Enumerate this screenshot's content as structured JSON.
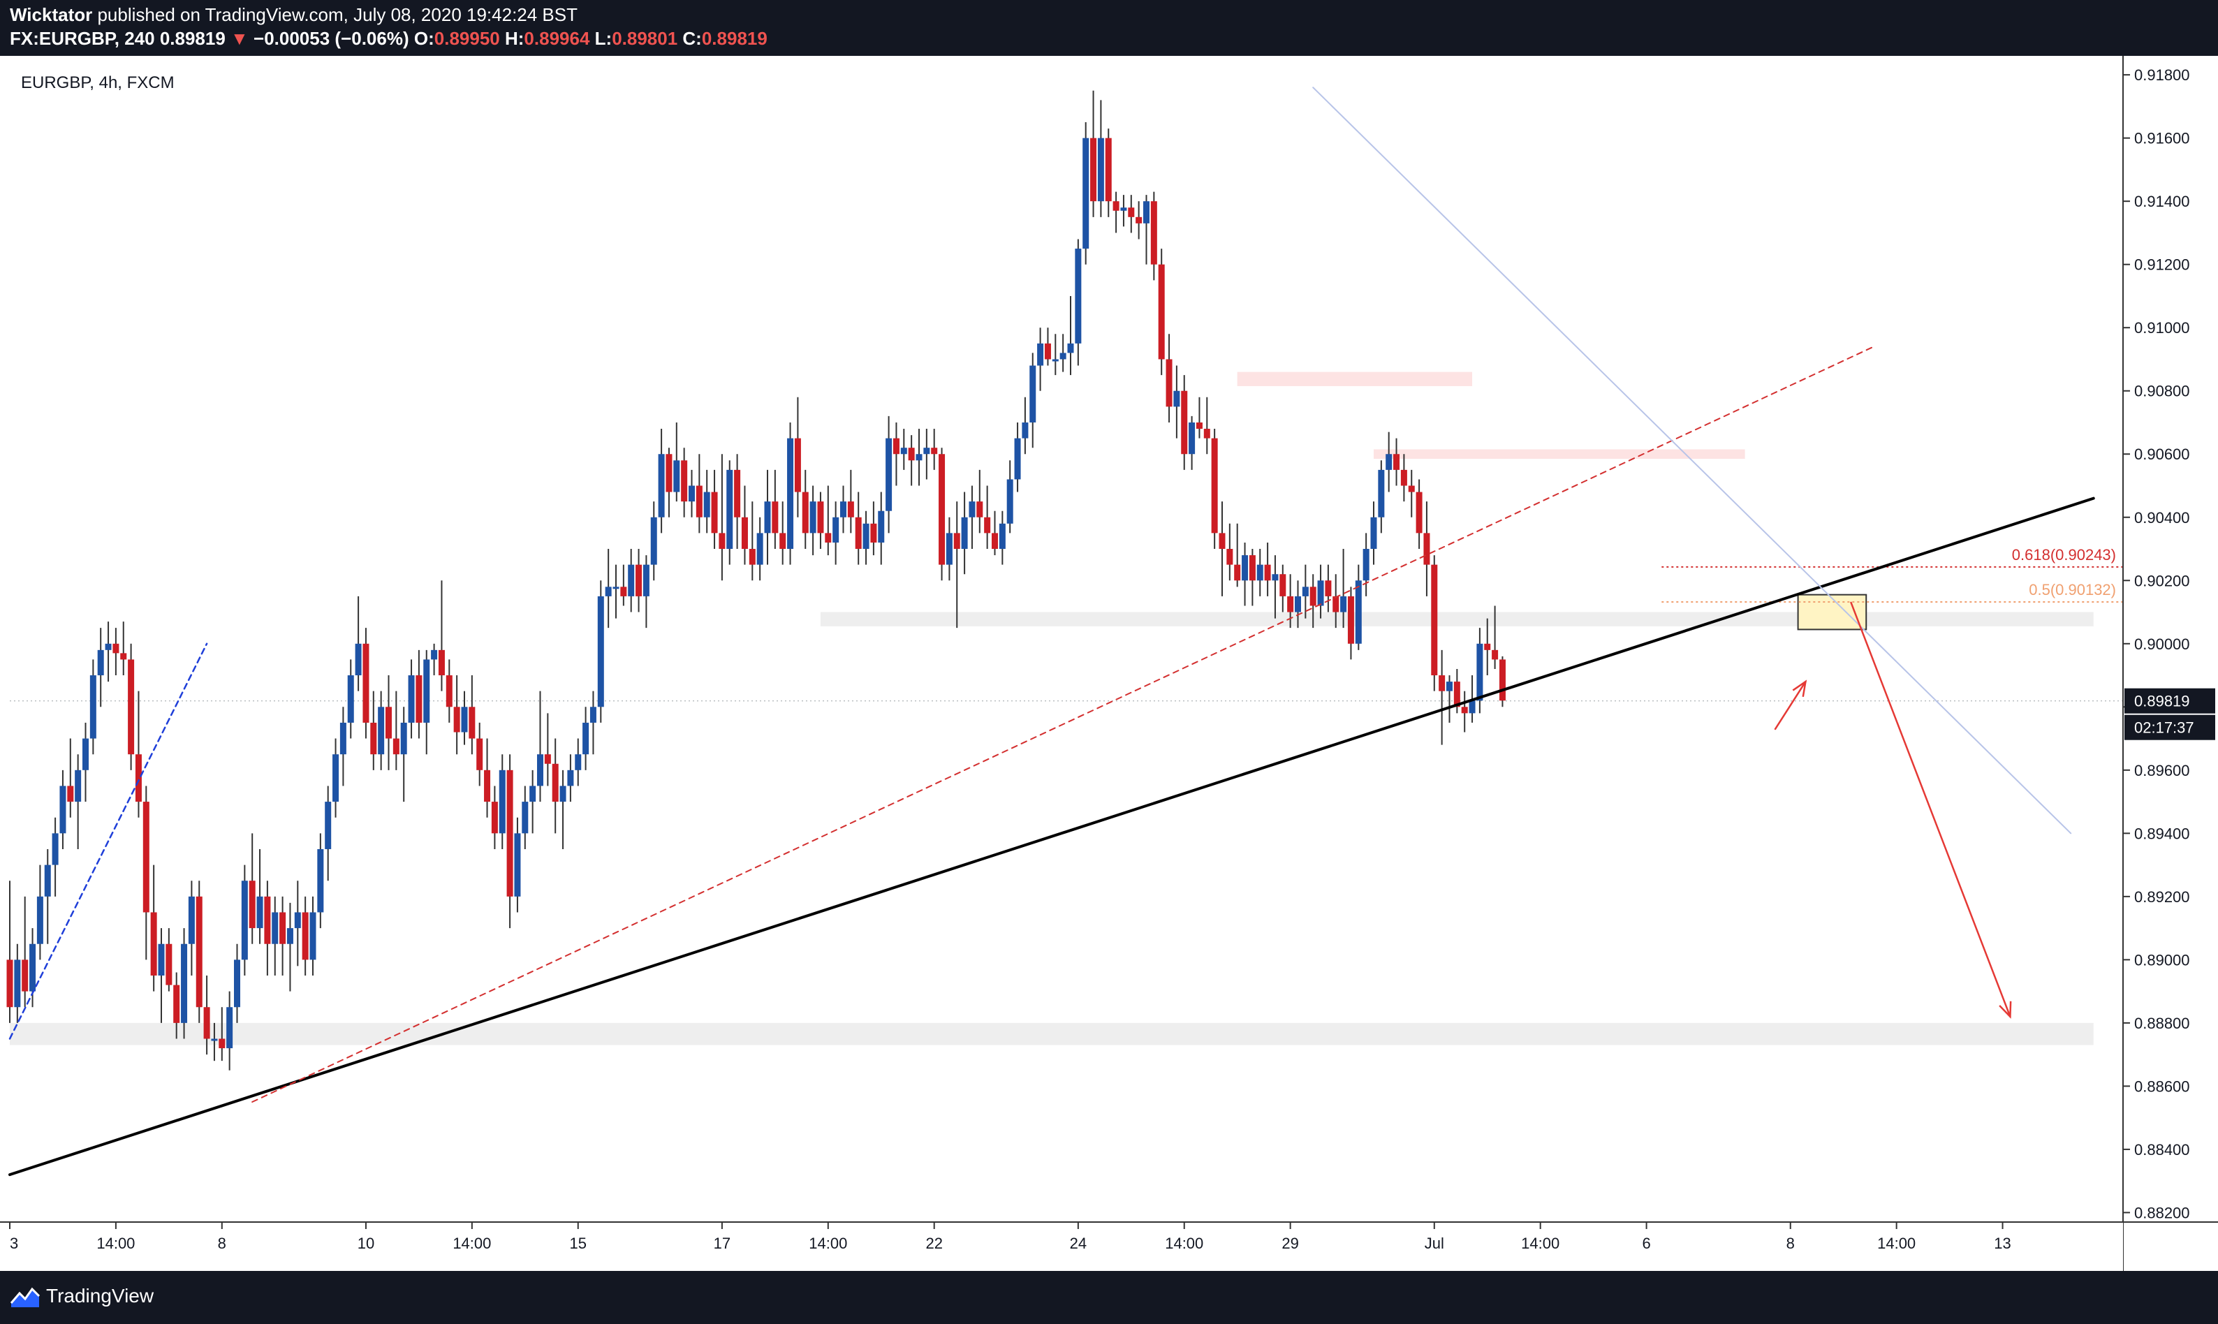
{
  "header": {
    "author": "Wicktator",
    "published": "published on TradingView.com, July 08, 2020 19:42:24 BST",
    "symbol": "FX:EURGBP, 240",
    "last": "0.89819",
    "arrow": "▼",
    "change": "−0.00053 (−0.06%)",
    "o_label": "O:",
    "o_value": "0.89950",
    "h_label": "H:",
    "h_value": "0.89964",
    "l_label": "L:",
    "l_value": "0.89801",
    "c_label": "C:",
    "c_value": "0.89819"
  },
  "footer": {
    "brand": "TradingView",
    "icon": "tradingview-logo-icon"
  },
  "colors": {
    "up": "#1e53a5",
    "down": "#cc1d24",
    "background": "#ffffff",
    "dark": "#131722"
  },
  "chart_data": {
    "type": "candlestick",
    "title": "EURGBP, 4h, FXCM",
    "ylim": [
      0.8817,
      0.9186
    ],
    "y_ticks": [
      "0.88200",
      "0.88400",
      "0.88600",
      "0.88800",
      "0.89000",
      "0.89200",
      "0.89400",
      "0.89600",
      "0.89800",
      "0.90000",
      "0.90200",
      "0.90400",
      "0.90600",
      "0.90800",
      "0.91000",
      "0.91200",
      "0.91400",
      "0.91600",
      "0.91800"
    ],
    "x_range": [
      0,
      270
    ],
    "x_ticks": [
      {
        "x": 0,
        "label": "3"
      },
      {
        "x": 14,
        "label": "14:00"
      },
      {
        "x": 28,
        "label": "8"
      },
      {
        "x": 47,
        "label": "10"
      },
      {
        "x": 61,
        "label": "14:00"
      },
      {
        "x": 75,
        "label": "15"
      },
      {
        "x": 94,
        "label": "17"
      },
      {
        "x": 108,
        "label": "14:00"
      },
      {
        "x": 122,
        "label": "22"
      },
      {
        "x": 141,
        "label": "24"
      },
      {
        "x": 155,
        "label": "14:00"
      },
      {
        "x": 169,
        "label": "29"
      },
      {
        "x": 188,
        "label": "Jul"
      },
      {
        "x": 202,
        "label": "14:00"
      },
      {
        "x": 216,
        "label": "6"
      },
      {
        "x": 235,
        "label": "8"
      },
      {
        "x": 249,
        "label": "14:00"
      },
      {
        "x": 263,
        "label": "13"
      }
    ],
    "last_price": {
      "value": 0.89819,
      "label": "0.89819",
      "countdown": "02:17:37"
    },
    "fib_levels": [
      {
        "label": "0.618(0.90243)",
        "value": 0.90243,
        "x_start": 218
      },
      {
        "label": "0.5(0.90132)",
        "value": 0.90132,
        "x_start": 218
      }
    ],
    "zones": [
      {
        "x0": 0,
        "x1": 275,
        "y0": 0.8873,
        "y1": 0.888
      },
      {
        "x0": 107,
        "x1": 275,
        "y0": 0.90055,
        "y1": 0.901
      },
      {
        "x0": 162,
        "x1": 193,
        "y0": 0.90815,
        "y1": 0.9086
      },
      {
        "x0": 180,
        "x1": 229,
        "y0": 0.90585,
        "y1": 0.90615
      },
      {
        "x0": 236,
        "x1": 245,
        "y0": 0.90045,
        "y1": 0.90155
      }
    ],
    "trendlines": [
      {
        "style": "solid-thick",
        "x0": 0,
        "y0": 0.8832,
        "x1": 275,
        "y1": 0.9046
      },
      {
        "style": "dashed-red",
        "x0": 32,
        "y0": 0.8855,
        "x1": 246,
        "y1": 0.9094
      },
      {
        "style": "dashed-blue",
        "x0": 0,
        "y0": 0.8875,
        "x1": 26,
        "y1": 0.9
      },
      {
        "style": "thin-blue",
        "x0": 172,
        "y0": 0.9176,
        "x1": 272,
        "y1": 0.894
      },
      {
        "style": "red-arrow",
        "x0": 243,
        "y0": 0.9013,
        "x1": 264,
        "y1": 0.8882
      },
      {
        "style": "red-small",
        "x0": 233,
        "y0": 0.8973,
        "x1": 237,
        "y1": 0.8988
      }
    ],
    "candles": [
      [
        0.89,
        0.8925,
        0.888,
        0.8885
      ],
      [
        0.8885,
        0.8905,
        0.888,
        0.89
      ],
      [
        0.89,
        0.892,
        0.8885,
        0.889
      ],
      [
        0.889,
        0.891,
        0.8885,
        0.8905
      ],
      [
        0.8905,
        0.893,
        0.89,
        0.892
      ],
      [
        0.892,
        0.8935,
        0.8905,
        0.893
      ],
      [
        0.893,
        0.8945,
        0.892,
        0.894
      ],
      [
        0.894,
        0.896,
        0.8935,
        0.8955
      ],
      [
        0.8955,
        0.897,
        0.8945,
        0.895
      ],
      [
        0.895,
        0.8965,
        0.8935,
        0.896
      ],
      [
        0.896,
        0.8975,
        0.895,
        0.897
      ],
      [
        0.897,
        0.8995,
        0.8965,
        0.899
      ],
      [
        0.899,
        0.9005,
        0.898,
        0.8998
      ],
      [
        0.8998,
        0.9007,
        0.8988,
        0.9
      ],
      [
        0.9,
        0.9005,
        0.899,
        0.8997
      ],
      [
        0.8997,
        0.9007,
        0.899,
        0.8995
      ],
      [
        0.8995,
        0.9,
        0.896,
        0.8965
      ],
      [
        0.8965,
        0.8985,
        0.8945,
        0.895
      ],
      [
        0.895,
        0.8955,
        0.89,
        0.8915
      ],
      [
        0.8915,
        0.893,
        0.889,
        0.8895
      ],
      [
        0.8895,
        0.891,
        0.888,
        0.8905
      ],
      [
        0.8905,
        0.891,
        0.889,
        0.8892
      ],
      [
        0.8892,
        0.8896,
        0.8875,
        0.888
      ],
      [
        0.888,
        0.891,
        0.8875,
        0.8905
      ],
      [
        0.8905,
        0.8925,
        0.8895,
        0.892
      ],
      [
        0.892,
        0.8925,
        0.888,
        0.8885
      ],
      [
        0.8885,
        0.8895,
        0.887,
        0.8875
      ],
      [
        0.8875,
        0.888,
        0.8868,
        0.8875
      ],
      [
        0.8875,
        0.8885,
        0.8868,
        0.8872
      ],
      [
        0.8872,
        0.889,
        0.8865,
        0.8885
      ],
      [
        0.8885,
        0.8905,
        0.888,
        0.89
      ],
      [
        0.89,
        0.893,
        0.8895,
        0.8925
      ],
      [
        0.8925,
        0.894,
        0.8905,
        0.891
      ],
      [
        0.891,
        0.8935,
        0.8905,
        0.892
      ],
      [
        0.892,
        0.8925,
        0.8895,
        0.8905
      ],
      [
        0.8905,
        0.892,
        0.8895,
        0.8915
      ],
      [
        0.8915,
        0.892,
        0.8895,
        0.8905
      ],
      [
        0.8905,
        0.8918,
        0.889,
        0.891
      ],
      [
        0.891,
        0.8925,
        0.8898,
        0.8915
      ],
      [
        0.8915,
        0.892,
        0.8895,
        0.89
      ],
      [
        0.89,
        0.892,
        0.8895,
        0.8915
      ],
      [
        0.8915,
        0.894,
        0.891,
        0.8935
      ],
      [
        0.8935,
        0.8955,
        0.8925,
        0.895
      ],
      [
        0.895,
        0.897,
        0.8945,
        0.8965
      ],
      [
        0.8965,
        0.898,
        0.8955,
        0.8975
      ],
      [
        0.8975,
        0.8995,
        0.897,
        0.899
      ],
      [
        0.899,
        0.9015,
        0.8985,
        0.9
      ],
      [
        0.9,
        0.9005,
        0.897,
        0.8975
      ],
      [
        0.8975,
        0.8985,
        0.896,
        0.8965
      ],
      [
        0.8965,
        0.8985,
        0.896,
        0.898
      ],
      [
        0.898,
        0.899,
        0.896,
        0.897
      ],
      [
        0.897,
        0.8985,
        0.896,
        0.8965
      ],
      [
        0.8965,
        0.898,
        0.895,
        0.8975
      ],
      [
        0.8975,
        0.8995,
        0.897,
        0.899
      ],
      [
        0.899,
        0.8998,
        0.897,
        0.8975
      ],
      [
        0.8975,
        0.8998,
        0.8965,
        0.8995
      ],
      [
        0.8995,
        0.9,
        0.899,
        0.8998
      ],
      [
        0.8998,
        0.902,
        0.8985,
        0.899
      ],
      [
        0.899,
        0.8995,
        0.8975,
        0.898
      ],
      [
        0.898,
        0.899,
        0.8965,
        0.8972
      ],
      [
        0.8972,
        0.8985,
        0.8968,
        0.898
      ],
      [
        0.898,
        0.899,
        0.8965,
        0.897
      ],
      [
        0.897,
        0.8975,
        0.8955,
        0.896
      ],
      [
        0.896,
        0.897,
        0.8945,
        0.895
      ],
      [
        0.895,
        0.8955,
        0.8935,
        0.894
      ],
      [
        0.894,
        0.8965,
        0.8935,
        0.896
      ],
      [
        0.896,
        0.8965,
        0.891,
        0.892
      ],
      [
        0.892,
        0.8945,
        0.8915,
        0.894
      ],
      [
        0.894,
        0.8955,
        0.8935,
        0.895
      ],
      [
        0.895,
        0.896,
        0.894,
        0.8955
      ],
      [
        0.8955,
        0.8985,
        0.895,
        0.8965
      ],
      [
        0.8965,
        0.8978,
        0.8955,
        0.8962
      ],
      [
        0.8962,
        0.897,
        0.894,
        0.895
      ],
      [
        0.895,
        0.896,
        0.8935,
        0.8955
      ],
      [
        0.8955,
        0.8965,
        0.895,
        0.896
      ],
      [
        0.896,
        0.897,
        0.8955,
        0.8965
      ],
      [
        0.8965,
        0.898,
        0.896,
        0.8975
      ],
      [
        0.8975,
        0.8985,
        0.8965,
        0.898
      ],
      [
        0.898,
        0.902,
        0.8975,
        0.9015
      ],
      [
        0.9015,
        0.903,
        0.9005,
        0.9018
      ],
      [
        0.9018,
        0.9025,
        0.9008,
        0.9018
      ],
      [
        0.9018,
        0.9025,
        0.9012,
        0.9015
      ],
      [
        0.9015,
        0.903,
        0.901,
        0.9025
      ],
      [
        0.9025,
        0.903,
        0.901,
        0.9015
      ],
      [
        0.9015,
        0.9028,
        0.9005,
        0.9025
      ],
      [
        0.9025,
        0.9045,
        0.902,
        0.904
      ],
      [
        0.904,
        0.9068,
        0.9035,
        0.906
      ],
      [
        0.906,
        0.9062,
        0.904,
        0.9048
      ],
      [
        0.9048,
        0.907,
        0.9045,
        0.9058
      ],
      [
        0.9058,
        0.9062,
        0.904,
        0.9045
      ],
      [
        0.9045,
        0.9055,
        0.904,
        0.905
      ],
      [
        0.905,
        0.906,
        0.9035,
        0.904
      ],
      [
        0.904,
        0.9055,
        0.9035,
        0.9048
      ],
      [
        0.9048,
        0.9055,
        0.903,
        0.9035
      ],
      [
        0.9035,
        0.906,
        0.902,
        0.903
      ],
      [
        0.903,
        0.9058,
        0.9025,
        0.9055
      ],
      [
        0.9055,
        0.906,
        0.903,
        0.904
      ],
      [
        0.904,
        0.905,
        0.9025,
        0.903
      ],
      [
        0.903,
        0.9045,
        0.902,
        0.9025
      ],
      [
        0.9025,
        0.904,
        0.902,
        0.9035
      ],
      [
        0.9035,
        0.9055,
        0.9025,
        0.9045
      ],
      [
        0.9045,
        0.9055,
        0.903,
        0.9035
      ],
      [
        0.9035,
        0.9045,
        0.9025,
        0.903
      ],
      [
        0.903,
        0.907,
        0.9025,
        0.9065
      ],
      [
        0.9065,
        0.9078,
        0.904,
        0.9048
      ],
      [
        0.9048,
        0.9055,
        0.903,
        0.9035
      ],
      [
        0.9035,
        0.905,
        0.9028,
        0.9045
      ],
      [
        0.9045,
        0.9048,
        0.903,
        0.9035
      ],
      [
        0.9035,
        0.905,
        0.9028,
        0.9032
      ],
      [
        0.9032,
        0.9045,
        0.9025,
        0.904
      ],
      [
        0.904,
        0.905,
        0.9035,
        0.9045
      ],
      [
        0.9045,
        0.9055,
        0.9035,
        0.904
      ],
      [
        0.904,
        0.9048,
        0.9025,
        0.903
      ],
      [
        0.903,
        0.9042,
        0.9025,
        0.9038
      ],
      [
        0.9038,
        0.9045,
        0.9028,
        0.9032
      ],
      [
        0.9032,
        0.9048,
        0.9025,
        0.9042
      ],
      [
        0.9042,
        0.9072,
        0.9035,
        0.9065
      ],
      [
        0.9065,
        0.907,
        0.905,
        0.906
      ],
      [
        0.906,
        0.9068,
        0.9055,
        0.9062
      ],
      [
        0.9062,
        0.9066,
        0.905,
        0.9058
      ],
      [
        0.9058,
        0.9068,
        0.905,
        0.906
      ],
      [
        0.906,
        0.9068,
        0.9052,
        0.9062
      ],
      [
        0.9062,
        0.9068,
        0.9055,
        0.906
      ],
      [
        0.906,
        0.9062,
        0.902,
        0.9025
      ],
      [
        0.9025,
        0.904,
        0.902,
        0.9035
      ],
      [
        0.9035,
        0.9045,
        0.9005,
        0.903
      ],
      [
        0.903,
        0.9048,
        0.9022,
        0.904
      ],
      [
        0.904,
        0.905,
        0.903,
        0.9045
      ],
      [
        0.9045,
        0.9055,
        0.9035,
        0.904
      ],
      [
        0.904,
        0.905,
        0.903,
        0.9035
      ],
      [
        0.9035,
        0.9042,
        0.9028,
        0.903
      ],
      [
        0.903,
        0.9042,
        0.9025,
        0.9038
      ],
      [
        0.9038,
        0.9058,
        0.9035,
        0.9052
      ],
      [
        0.9052,
        0.907,
        0.9048,
        0.9065
      ],
      [
        0.9065,
        0.9078,
        0.906,
        0.907
      ],
      [
        0.907,
        0.9092,
        0.9062,
        0.9088
      ],
      [
        0.9088,
        0.91,
        0.908,
        0.9095
      ],
      [
        0.9095,
        0.91,
        0.9088,
        0.909
      ],
      [
        0.909,
        0.9098,
        0.9085,
        0.909
      ],
      [
        0.909,
        0.9098,
        0.9086,
        0.9092
      ],
      [
        0.9092,
        0.911,
        0.9085,
        0.9095
      ],
      [
        0.9095,
        0.9128,
        0.9088,
        0.9125
      ],
      [
        0.9125,
        0.9165,
        0.912,
        0.916
      ],
      [
        0.916,
        0.9175,
        0.9135,
        0.914
      ],
      [
        0.914,
        0.9172,
        0.9135,
        0.916
      ],
      [
        0.916,
        0.9163,
        0.9135,
        0.914
      ],
      [
        0.914,
        0.9143,
        0.913,
        0.9137
      ],
      [
        0.9137,
        0.9142,
        0.9132,
        0.9138
      ],
      [
        0.9138,
        0.9142,
        0.913,
        0.9135
      ],
      [
        0.9135,
        0.914,
        0.9128,
        0.9133
      ],
      [
        0.9133,
        0.9142,
        0.912,
        0.914
      ],
      [
        0.914,
        0.9143,
        0.9115,
        0.912
      ],
      [
        0.912,
        0.9125,
        0.9085,
        0.909
      ],
      [
        0.909,
        0.9098,
        0.907,
        0.9075
      ],
      [
        0.9075,
        0.9088,
        0.9065,
        0.908
      ],
      [
        0.908,
        0.9085,
        0.9055,
        0.906
      ],
      [
        0.906,
        0.9072,
        0.9055,
        0.907
      ],
      [
        0.907,
        0.9078,
        0.9065,
        0.9068
      ],
      [
        0.9068,
        0.9078,
        0.906,
        0.9065
      ],
      [
        0.9065,
        0.9068,
        0.903,
        0.9035
      ],
      [
        0.9035,
        0.9045,
        0.9015,
        0.903
      ],
      [
        0.903,
        0.9038,
        0.902,
        0.9025
      ],
      [
        0.9025,
        0.9038,
        0.9018,
        0.902
      ],
      [
        0.902,
        0.9032,
        0.9012,
        0.9028
      ],
      [
        0.9028,
        0.903,
        0.9012,
        0.902
      ],
      [
        0.902,
        0.903,
        0.9015,
        0.9025
      ],
      [
        0.9025,
        0.9032,
        0.9015,
        0.902
      ],
      [
        0.902,
        0.9028,
        0.9008,
        0.9022
      ],
      [
        0.9022,
        0.9025,
        0.901,
        0.9015
      ],
      [
        0.9015,
        0.9022,
        0.9005,
        0.901
      ],
      [
        0.901,
        0.902,
        0.9005,
        0.9015
      ],
      [
        0.9015,
        0.9025,
        0.9008,
        0.9018
      ],
      [
        0.9018,
        0.9022,
        0.9005,
        0.9012
      ],
      [
        0.9012,
        0.9025,
        0.9008,
        0.902
      ],
      [
        0.902,
        0.9025,
        0.901,
        0.9015
      ],
      [
        0.9015,
        0.9022,
        0.9005,
        0.901
      ],
      [
        0.901,
        0.903,
        0.9005,
        0.9015
      ],
      [
        0.9015,
        0.9018,
        0.8995,
        0.9
      ],
      [
        0.9,
        0.9025,
        0.8998,
        0.902
      ],
      [
        0.902,
        0.9035,
        0.9015,
        0.903
      ],
      [
        0.903,
        0.9045,
        0.9025,
        0.904
      ],
      [
        0.904,
        0.9058,
        0.9035,
        0.9055
      ],
      [
        0.9055,
        0.9067,
        0.9048,
        0.906
      ],
      [
        0.906,
        0.9065,
        0.905,
        0.9055
      ],
      [
        0.9055,
        0.906,
        0.9045,
        0.905
      ],
      [
        0.905,
        0.9055,
        0.904,
        0.9048
      ],
      [
        0.9048,
        0.9052,
        0.903,
        0.9035
      ],
      [
        0.9035,
        0.9045,
        0.9015,
        0.9025
      ],
      [
        0.9025,
        0.9028,
        0.8985,
        0.899
      ],
      [
        0.899,
        0.8998,
        0.8968,
        0.8985
      ],
      [
        0.8985,
        0.899,
        0.8975,
        0.8988
      ],
      [
        0.8988,
        0.8992,
        0.8978,
        0.898
      ],
      [
        0.898,
        0.8985,
        0.8972,
        0.8978
      ],
      [
        0.8978,
        0.899,
        0.8975,
        0.8982
      ],
      [
        0.8982,
        0.9005,
        0.8978,
        0.9
      ],
      [
        0.9,
        0.9008,
        0.899,
        0.8998
      ],
      [
        0.8998,
        0.9012,
        0.8992,
        0.8995
      ],
      [
        0.8995,
        0.8996,
        0.898,
        0.8982
      ]
    ]
  }
}
